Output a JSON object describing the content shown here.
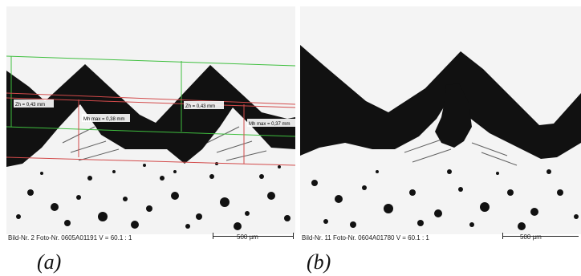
{
  "panels": [
    {
      "id": "a",
      "label": "(a)",
      "caption": "Bild-Nr. 2  Foto-Nr. 0605A01191  V = 60.1 : 1",
      "scale": "500 µm",
      "annotations": {
        "zh_left": "Zh = 0,43 mm",
        "zh_right": "Zh = 0,43 mm",
        "mh_left": "Mh max = 0,38 mm",
        "mh_right": "Mh max = 0,37 mm"
      }
    },
    {
      "id": "b",
      "label": "(b)",
      "caption": "Bild-Nr. 11  Foto-Nr. 0604A01780  V = 60.1 : 1",
      "scale": "500 µm"
    }
  ],
  "colors": {
    "background_metal": "#f4f4f4",
    "dark_band": "#111111",
    "green_lines": "#3fbf3f",
    "red_lines": "#d24a4a"
  }
}
